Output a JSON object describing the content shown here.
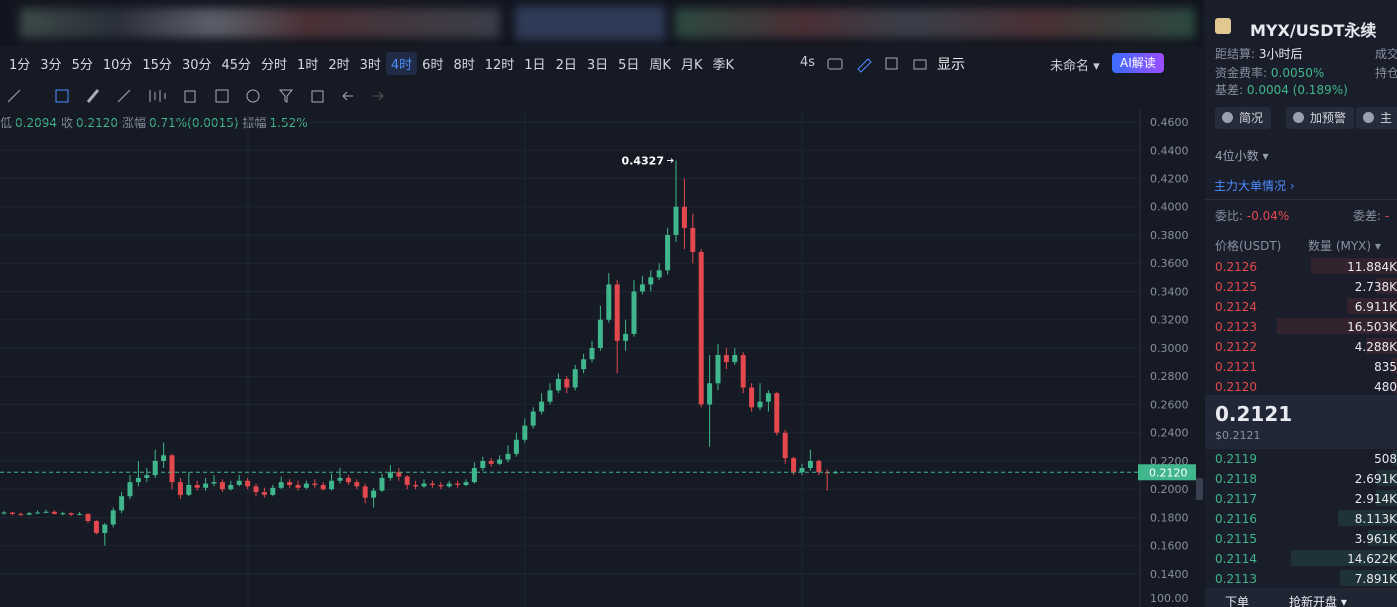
{
  "toolbar": {
    "intervals": [
      "1分",
      "3分",
      "5分",
      "10分",
      "15分",
      "30分",
      "45分",
      "分时",
      "1时",
      "2时",
      "3时",
      "4时",
      "6时",
      "8时",
      "12时",
      "1日",
      "2日",
      "3日",
      "5日",
      "周K",
      "月K",
      "季K"
    ],
    "active_interval": "4时",
    "refresh": "4s",
    "display": "显示",
    "layout_name": "未命名",
    "ai": "AI解读"
  },
  "chart_data": {
    "type": "candlestick",
    "info": [
      {
        "label": "低",
        "value": "0.2094"
      },
      {
        "label": "收",
        "value": "0.2120"
      },
      {
        "label": "涨幅",
        "value": "0.71%(0.0015)"
      },
      {
        "label": "振幅",
        "value": "1.52%"
      }
    ],
    "up_color": "#3fb68b",
    "down_color": "#e2484d",
    "open": [
      0.183,
      0.1835,
      0.1825,
      0.182,
      0.183,
      0.1835,
      0.184,
      0.1825,
      0.183,
      0.182,
      0.1825,
      0.1775,
      0.169,
      0.175,
      0.185,
      0.195,
      0.205,
      0.208,
      0.21,
      0.22,
      0.224,
      0.205,
      0.196,
      0.203,
      0.201,
      0.204,
      0.205,
      0.2,
      0.203,
      0.206,
      0.202,
      0.198,
      0.196,
      0.201,
      0.205,
      0.203,
      0.201,
      0.204,
      0.203,
      0.2,
      0.206,
      0.208,
      0.205,
      0.202,
      0.194,
      0.199,
      0.208,
      0.212,
      0.209,
      0.203,
      0.202,
      0.204,
      0.203,
      0.202,
      0.204,
      0.203,
      0.205,
      0.215,
      0.22,
      0.218,
      0.221,
      0.225,
      0.235,
      0.245,
      0.255,
      0.262,
      0.27,
      0.278,
      0.272,
      0.285,
      0.292,
      0.3,
      0.32,
      0.345,
      0.305,
      0.31,
      0.34,
      0.345,
      0.35,
      0.355,
      0.38,
      0.4,
      0.385,
      0.368,
      0.26,
      0.275,
      0.295,
      0.29,
      0.295,
      0.272,
      0.258,
      0.262,
      0.268,
      0.24,
      0.222,
      0.212,
      0.215,
      0.22,
      0.212,
      0.2115
    ],
    "high": [
      0.1845,
      0.184,
      0.1835,
      0.184,
      0.185,
      0.1855,
      0.185,
      0.184,
      0.1835,
      0.184,
      0.183,
      0.178,
      0.176,
      0.187,
      0.198,
      0.21,
      0.22,
      0.215,
      0.228,
      0.233,
      0.225,
      0.208,
      0.212,
      0.206,
      0.208,
      0.21,
      0.207,
      0.206,
      0.21,
      0.208,
      0.204,
      0.201,
      0.203,
      0.209,
      0.207,
      0.206,
      0.206,
      0.207,
      0.205,
      0.211,
      0.215,
      0.21,
      0.207,
      0.204,
      0.201,
      0.211,
      0.217,
      0.215,
      0.21,
      0.206,
      0.207,
      0.206,
      0.205,
      0.206,
      0.206,
      0.207,
      0.219,
      0.223,
      0.222,
      0.224,
      0.231,
      0.24,
      0.25,
      0.258,
      0.268,
      0.275,
      0.282,
      0.28,
      0.288,
      0.296,
      0.305,
      0.33,
      0.353,
      0.348,
      0.32,
      0.348,
      0.351,
      0.355,
      0.36,
      0.385,
      0.4327,
      0.42,
      0.395,
      0.37,
      0.295,
      0.303,
      0.3,
      0.3,
      0.297,
      0.275,
      0.275,
      0.27,
      0.269,
      0.242,
      0.223,
      0.218,
      0.228,
      0.221,
      0.214,
      0.213
    ],
    "low": [
      0.182,
      0.1815,
      0.181,
      0.1815,
      0.1825,
      0.183,
      0.182,
      0.1815,
      0.181,
      0.1815,
      0.176,
      0.168,
      0.16,
      0.173,
      0.183,
      0.193,
      0.202,
      0.205,
      0.208,
      0.215,
      0.2,
      0.193,
      0.195,
      0.199,
      0.199,
      0.202,
      0.198,
      0.199,
      0.202,
      0.2,
      0.195,
      0.194,
      0.195,
      0.2,
      0.201,
      0.199,
      0.2,
      0.201,
      0.199,
      0.199,
      0.204,
      0.203,
      0.2,
      0.19,
      0.187,
      0.198,
      0.206,
      0.206,
      0.2,
      0.2,
      0.201,
      0.201,
      0.2,
      0.201,
      0.201,
      0.202,
      0.204,
      0.213,
      0.216,
      0.217,
      0.219,
      0.223,
      0.233,
      0.243,
      0.253,
      0.26,
      0.268,
      0.268,
      0.27,
      0.282,
      0.29,
      0.298,
      0.318,
      0.282,
      0.298,
      0.308,
      0.338,
      0.34,
      0.348,
      0.352,
      0.375,
      0.37,
      0.36,
      0.258,
      0.23,
      0.27,
      0.285,
      0.288,
      0.268,
      0.255,
      0.256,
      0.255,
      0.238,
      0.218,
      0.21,
      0.21,
      0.213,
      0.21,
      0.199,
      0.211
    ],
    "close": [
      0.1835,
      0.1825,
      0.182,
      0.183,
      0.1835,
      0.184,
      0.1825,
      0.183,
      0.182,
      0.1825,
      0.1775,
      0.169,
      0.175,
      0.185,
      0.195,
      0.205,
      0.208,
      0.21,
      0.22,
      0.224,
      0.205,
      0.196,
      0.203,
      0.201,
      0.204,
      0.205,
      0.2,
      0.203,
      0.206,
      0.202,
      0.198,
      0.196,
      0.201,
      0.205,
      0.203,
      0.201,
      0.204,
      0.203,
      0.2,
      0.206,
      0.208,
      0.205,
      0.202,
      0.194,
      0.199,
      0.208,
      0.212,
      0.209,
      0.203,
      0.202,
      0.204,
      0.203,
      0.202,
      0.204,
      0.203,
      0.205,
      0.215,
      0.22,
      0.218,
      0.221,
      0.225,
      0.235,
      0.245,
      0.255,
      0.262,
      0.27,
      0.278,
      0.272,
      0.285,
      0.292,
      0.3,
      0.32,
      0.345,
      0.305,
      0.31,
      0.34,
      0.345,
      0.35,
      0.355,
      0.38,
      0.4,
      0.385,
      0.368,
      0.26,
      0.275,
      0.295,
      0.29,
      0.295,
      0.272,
      0.258,
      0.262,
      0.268,
      0.24,
      0.222,
      0.212,
      0.215,
      0.22,
      0.212,
      0.2115,
      0.212
    ],
    "ylim": [
      0.1166,
      0.4685
    ],
    "yticks": [
      {
        "value": 0.14,
        "label": "0.1400"
      },
      {
        "value": 0.16,
        "label": "0.1600"
      },
      {
        "value": 0.18,
        "label": "0.1800"
      },
      {
        "value": 0.2,
        "label": "0.2000"
      },
      {
        "value": 0.22,
        "label": "0.2200"
      },
      {
        "value": 0.24,
        "label": "0.2400"
      },
      {
        "value": 0.26,
        "label": "0.2600"
      },
      {
        "value": 0.28,
        "label": "0.2800"
      },
      {
        "value": 0.3,
        "label": "0.3000"
      },
      {
        "value": 0.32,
        "label": "0.3200"
      },
      {
        "value": 0.34,
        "label": "0.3400"
      },
      {
        "value": 0.36,
        "label": "0.3600"
      },
      {
        "value": 0.38,
        "label": "0.3800"
      },
      {
        "value": 0.4,
        "label": "0.4000"
      },
      {
        "value": 0.42,
        "label": "0.4200"
      },
      {
        "value": 0.44,
        "label": "0.4400"
      },
      {
        "value": 0.46,
        "label": "0.4600"
      }
    ],
    "grid": true,
    "last_price": {
      "value": 0.212,
      "label": "0.2120"
    },
    "high_marker": {
      "value": 0.4327,
      "label": "0.4327"
    },
    "secondary_tick": "100.00"
  },
  "market": {
    "symbol": "MYX/USDT永续",
    "settle_label": "距结算:",
    "settle_value": "3小时后",
    "volume_label": "成交",
    "funding_label": "资金费率:",
    "funding_value": "0.0050%",
    "oi_label": "持仓",
    "basis_label": "基差:",
    "basis_value": "0.0004 (0.189%)",
    "buttons": [
      "简况",
      "加预警",
      "主"
    ],
    "decimals": "4位小数",
    "big_orders": "主力大单情况"
  },
  "order_book": {
    "ratio_label": "委比:",
    "ratio_value": "-0.04%",
    "diff_label": "委差:",
    "diff_value": "-",
    "price_header": "价格(USDT)",
    "qty_header": "数量 (MYX)",
    "asks": [
      {
        "price": "0.2126",
        "qty": {
          "value": 11884,
          "label": "11.884K"
        }
      },
      {
        "price": "0.2125",
        "qty": {
          "value": 2738,
          "label": "2.738K"
        }
      },
      {
        "price": "0.2124",
        "qty": {
          "value": 6911,
          "label": "6.911K"
        }
      },
      {
        "price": "0.2123",
        "qty": {
          "value": 16503,
          "label": "16.503K"
        }
      },
      {
        "price": "0.2122",
        "qty": {
          "value": 4288,
          "label": "4.288K"
        }
      },
      {
        "price": "0.2121",
        "qty": 835
      },
      {
        "price": "0.2120",
        "qty": 480
      }
    ],
    "mid_price": "0.2121",
    "mid_usd": "$0.2121",
    "bids": [
      {
        "price": "0.2119",
        "qty": 508
      },
      {
        "price": "0.2118",
        "qty": {
          "value": 2691,
          "label": "2.691K"
        }
      },
      {
        "price": "0.2117",
        "qty": {
          "value": 2914,
          "label": "2.914K"
        }
      },
      {
        "price": "0.2116",
        "qty": {
          "value": 8113,
          "label": "8.113K"
        }
      },
      {
        "price": "0.2115",
        "qty": {
          "value": 3961,
          "label": "3.961K"
        }
      },
      {
        "price": "0.2114",
        "qty": {
          "value": 14622,
          "label": "14.622K"
        }
      },
      {
        "price": "0.2113",
        "qty": {
          "value": 7891,
          "label": "7.891K"
        }
      }
    ]
  },
  "footer_tabs": [
    "下单",
    "抢新开盘"
  ]
}
